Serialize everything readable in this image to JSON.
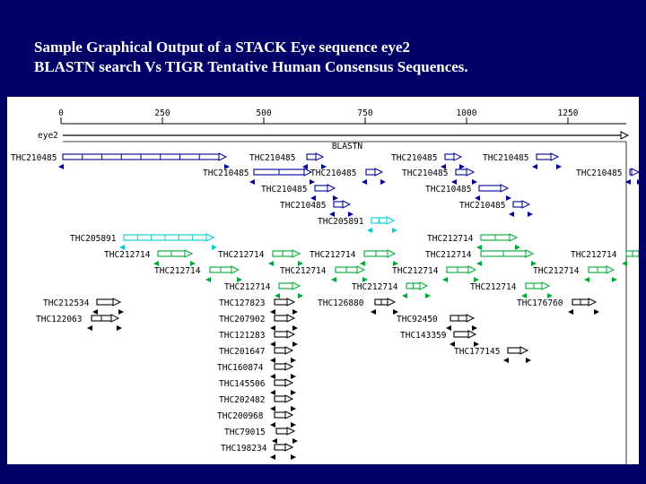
{
  "title": {
    "line1": "Sample Graphical Output of a STACK Eye sequence eye2",
    "line2": "BLASTN search Vs TIGR Tentative Human Consensus Sequences."
  },
  "axis": {
    "ticks": [
      "0",
      "250",
      "500",
      "750",
      "1000",
      "1250"
    ],
    "query_label": "eye2",
    "program_label": "BLASTN"
  },
  "colors": {
    "background": "#000066",
    "panel": "#ffffff",
    "thc210485": "#000099",
    "thc205891": "#00cccc",
    "thc212714": "#00aa33",
    "other": "#000000"
  },
  "hits": [
    {
      "label": "THC210485",
      "group": "thc210485"
    },
    {
      "label": "THC210485",
      "group": "thc210485"
    },
    {
      "label": "THC210485",
      "group": "thc210485"
    },
    {
      "label": "THC210485",
      "group": "thc210485"
    },
    {
      "label": "THC210485",
      "group": "thc210485"
    },
    {
      "label": "THC210485",
      "group": "thc210485"
    },
    {
      "label": "THC210485",
      "group": "thc210485"
    },
    {
      "label": "THC210485",
      "group": "thc210485"
    },
    {
      "label": "THC210485",
      "group": "thc210485"
    },
    {
      "label": "THC210485",
      "group": "thc210485"
    },
    {
      "label": "THC210485",
      "group": "thc210485"
    },
    {
      "label": "THC210485",
      "group": "thc210485"
    },
    {
      "label": "THC205891",
      "group": "thc205891"
    },
    {
      "label": "THC205891",
      "group": "thc205891"
    },
    {
      "label": "THC212714",
      "group": "thc212714"
    },
    {
      "label": "THC212714",
      "group": "thc212714"
    },
    {
      "label": "THC212714",
      "group": "thc212714"
    },
    {
      "label": "THC212714",
      "group": "thc212714"
    },
    {
      "label": "THC212714",
      "group": "thc212714"
    },
    {
      "label": "THC212714",
      "group": "thc212714"
    },
    {
      "label": "THC212714",
      "group": "thc212714"
    },
    {
      "label": "THC212714",
      "group": "thc212714"
    },
    {
      "label": "THC212714",
      "group": "thc212714"
    },
    {
      "label": "THC212714",
      "group": "thc212714"
    },
    {
      "label": "THC212714",
      "group": "thc212714"
    },
    {
      "label": "THC212714",
      "group": "thc212714"
    },
    {
      "label": "THC212714",
      "group": "thc212714"
    },
    {
      "label": "THC212534",
      "group": "other"
    },
    {
      "label": "THC127823",
      "group": "other"
    },
    {
      "label": "THC126880",
      "group": "other"
    },
    {
      "label": "THC176760",
      "group": "other"
    },
    {
      "label": "THC122063",
      "group": "other"
    },
    {
      "label": "THC207902",
      "group": "other"
    },
    {
      "label": "THC92450",
      "group": "other"
    },
    {
      "label": "THC121283",
      "group": "other"
    },
    {
      "label": "THC143359",
      "group": "other"
    },
    {
      "label": "THC201647",
      "group": "other"
    },
    {
      "label": "THC177145",
      "group": "other"
    },
    {
      "label": "THC160874",
      "group": "other"
    },
    {
      "label": "THC145506",
      "group": "other"
    },
    {
      "label": "THC202482",
      "group": "other"
    },
    {
      "label": "THC200968",
      "group": "other"
    },
    {
      "label": "THC79015",
      "group": "other"
    },
    {
      "label": "THC198234",
      "group": "other"
    }
  ]
}
